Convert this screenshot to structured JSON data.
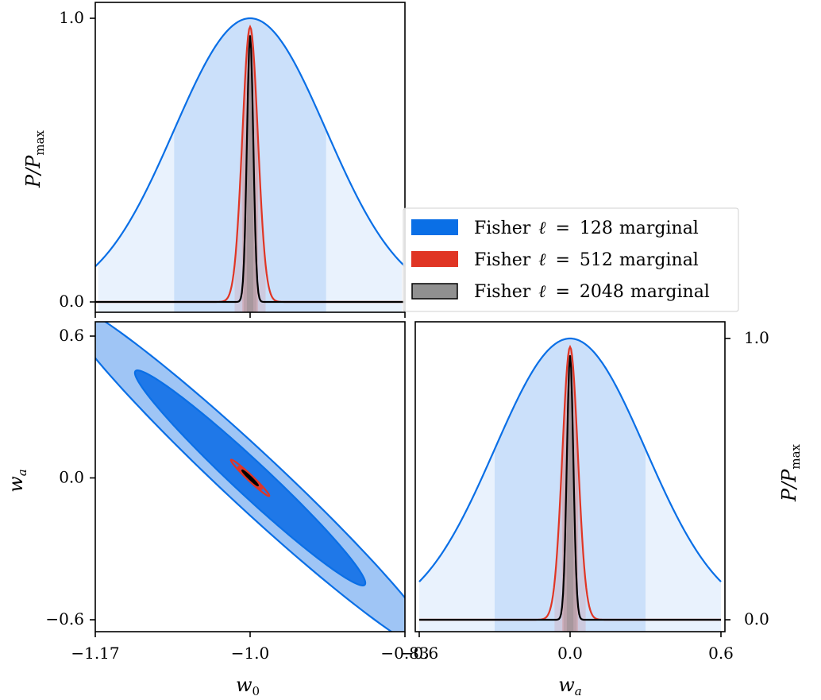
{
  "chart_data": {
    "type": "triangle-plot",
    "parameters": [
      {
        "symbol": "w_0",
        "label_main": "w",
        "label_sub": "0",
        "fiducial": -1.0,
        "ticks": [
          "−1.17",
          "−1.0",
          "−0.83"
        ],
        "tick_values": [
          -1.17,
          -1.0,
          -0.83
        ],
        "range": [
          -1.17,
          -0.83
        ]
      },
      {
        "symbol": "w_a",
        "label_main": "w",
        "label_sub": "a",
        "fiducial": 0.0,
        "ticks": [
          "−0.6",
          "0.0",
          "0.6"
        ],
        "tick_values": [
          -0.6,
          0.0,
          0.6
        ],
        "range": [
          -0.6,
          0.6
        ]
      }
    ],
    "marginal_axis": {
      "label_main": "P/P",
      "label_sub": "max",
      "ticks": [
        "0.0",
        "1.0"
      ],
      "tick_values": [
        0.0,
        1.0
      ],
      "range": [
        0.0,
        1.0
      ]
    },
    "series": [
      {
        "name": "Fisher ℓ = 128 marginal",
        "legend_prefix": "Fisher",
        "ell": "128",
        "legend_suffix": "marginal",
        "color": "#0a6fe6",
        "sigma_w0": 0.0834,
        "sigma_wa": 0.3,
        "correlation": -0.977
      },
      {
        "name": "Fisher ℓ = 512 marginal",
        "legend_prefix": "Fisher",
        "ell": "512",
        "legend_suffix": "marginal",
        "color": "#e03524",
        "sigma_w0": 0.0085,
        "sigma_wa": 0.031,
        "correlation": -0.977
      },
      {
        "name": "Fisher ℓ = 2048 marginal",
        "legend_prefix": "Fisher",
        "ell": "2048",
        "legend_suffix": "marginal",
        "color": "#000000",
        "sigma_w0": 0.0035,
        "sigma_wa": 0.013,
        "correlation": -0.977
      }
    ],
    "contour_levels": [
      "1σ",
      "2σ"
    ],
    "legend_position": "center-right"
  },
  "colors": {
    "blue": "#0a6fe6",
    "red": "#e03524",
    "black": "#000000",
    "gray_patch": "#909090"
  }
}
